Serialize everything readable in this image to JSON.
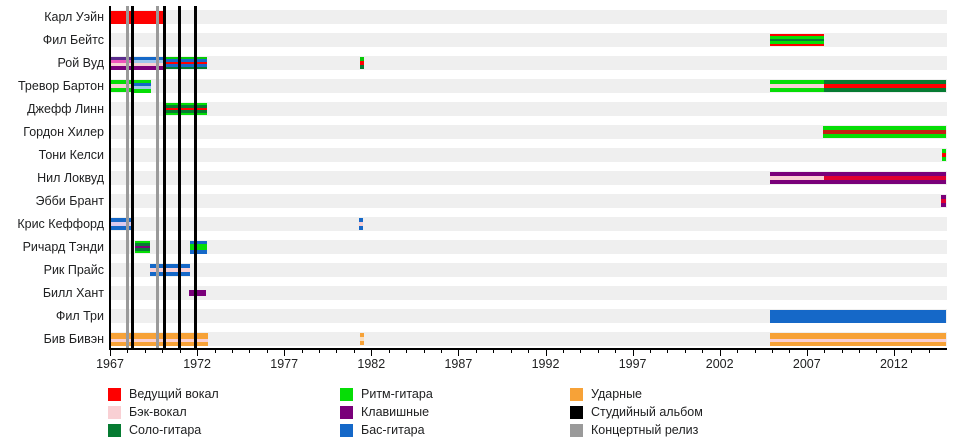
{
  "chart_data": {
    "type": "timeline",
    "title": "",
    "x_axis": {
      "start": 1967,
      "end": 2015,
      "ticks": [
        1967,
        1972,
        1977,
        1982,
        1987,
        1992,
        1997,
        2002,
        2007,
        2012
      ],
      "minor_tick_every": 1
    },
    "members": [
      {
        "name": "Карл Уэйн",
        "segments": [
          {
            "from": 1967.0,
            "to": 1970.15,
            "stripes": [
              "#FE0000"
            ]
          }
        ]
      },
      {
        "name": "Фил Бейтс",
        "segments": [
          {
            "from": 2004.9,
            "to": 2008.0,
            "stripes": [
              "#FE0000",
              "#06DD06",
              "#067B32",
              "#06DD06",
              "#FE0000"
            ]
          }
        ]
      },
      {
        "name": "Рой Вуд",
        "segments": [
          {
            "from": 1967.0,
            "to": 1968.3,
            "stripes": [
              "#5B2D8E",
              "#EE55BB",
              "#F9D0D4",
              "#7A007A"
            ]
          },
          {
            "from": 1968.3,
            "to": 1970.05,
            "stripes": [
              "#1568C8",
              "#9FC6EC",
              "#F9D0D4",
              "#7A007A"
            ]
          },
          {
            "from": 1970.05,
            "to": 1972.55,
            "stripes": [
              "#06C806",
              "#1568C8",
              "#FE0000",
              "#1568C8",
              "#067B32"
            ]
          },
          {
            "from": 1981.35,
            "to": 1981.6,
            "stripes": [
              "#06C806",
              "#FE0000",
              "#067B32"
            ]
          }
        ]
      },
      {
        "name": "Тревор Бартон",
        "segments": [
          {
            "from": 1967.0,
            "to": 1968.35,
            "stripes": [
              "#06DD06",
              "#F9D0D4",
              "#06DD06"
            ]
          },
          {
            "from": 1968.35,
            "to": 1969.35,
            "stripes": [
              "#06DD06",
              "#1568C8",
              "#9FC6EC",
              "#06DD06"
            ]
          },
          {
            "from": 2004.9,
            "to": 2008.0,
            "stripes": [
              "#06DD06",
              "#F9D0D4",
              "#06DD06"
            ]
          },
          {
            "from": 2008.0,
            "to": 2015.0,
            "stripes": [
              "#067B32",
              "#FE0000",
              "#067B32"
            ]
          }
        ]
      },
      {
        "name": "Джефф Линн",
        "segments": [
          {
            "from": 1970.2,
            "to": 1972.55,
            "stripes": [
              "#06DD06",
              "#067B32",
              "#FE0000",
              "#067B32",
              "#06DD06"
            ]
          }
        ]
      },
      {
        "name": "Гордон Хилер",
        "segments": [
          {
            "from": 2007.95,
            "to": 2015.0,
            "stripes": [
              "#06DD06",
              "#C42015",
              "#06DD06"
            ]
          }
        ]
      },
      {
        "name": "Тони Келси",
        "segments": [
          {
            "from": 2014.75,
            "to": 2015.0,
            "stripes": [
              "#06DD06",
              "#FE0000",
              "#06DD06"
            ]
          }
        ]
      },
      {
        "name": "Нил Локвуд",
        "segments": [
          {
            "from": 2004.9,
            "to": 2008.0,
            "stripes": [
              "#7A007A",
              "#F9D0D4",
              "#7A007A"
            ]
          },
          {
            "from": 2008.0,
            "to": 2015.0,
            "stripes": [
              "#7A007A",
              "#E00030",
              "#7A007A"
            ]
          }
        ]
      },
      {
        "name": "Эбби Брант",
        "segments": [
          {
            "from": 2014.7,
            "to": 2015.0,
            "stripes": [
              "#7A007A",
              "#E00030",
              "#7A007A"
            ]
          }
        ]
      },
      {
        "name": "Крис Кеффорд",
        "segments": [
          {
            "from": 1967.0,
            "to": 1968.4,
            "stripes": [
              "#1568C8",
              "#D9C9EE",
              "#1568C8"
            ]
          },
          {
            "from": 1981.3,
            "to": 1981.52,
            "stripes": [
              "#1568C8",
              "#F9D0D4",
              "#1568C8"
            ]
          }
        ]
      },
      {
        "name": "Ричард Тэнди",
        "segments": [
          {
            "from": 1968.45,
            "to": 1969.3,
            "stripes": [
              "#06DD06",
              "#067B32",
              "#7A007A",
              "#067B32",
              "#06DD06"
            ]
          },
          {
            "from": 1971.6,
            "to": 1972.55,
            "stripes": [
              "#1568C8",
              "#06DD06",
              "#06DD06",
              "#1568C8"
            ]
          }
        ]
      },
      {
        "name": "Рик Прайс",
        "segments": [
          {
            "from": 1969.3,
            "to": 1971.6,
            "stripes": [
              "#1568C8",
              "#F9D0D4",
              "#1568C8"
            ]
          }
        ]
      },
      {
        "name": "Билл Хант",
        "segments": [
          {
            "from": 1971.55,
            "to": 1972.5,
            "stripes": [
              "#7A007A"
            ],
            "height": 6
          }
        ]
      },
      {
        "name": "Фил Три",
        "segments": [
          {
            "from": 2004.9,
            "to": 2015.0,
            "stripes": [
              "#1568C8"
            ]
          }
        ]
      },
      {
        "name": "Бив Бивэн",
        "segments": [
          {
            "from": 1967.0,
            "to": 1972.6,
            "stripes": [
              "#F7A237",
              "#F7A237",
              "#F9D0D4",
              "#F7A237"
            ]
          },
          {
            "from": 1981.35,
            "to": 1981.6,
            "stripes": [
              "#F7A237",
              "#FBDFBF",
              "#F7A237"
            ]
          },
          {
            "from": 2004.9,
            "to": 2015.0,
            "stripes": [
              "#F7A237",
              "#F7A237",
              "#F9D0D4",
              "#F7A237"
            ]
          }
        ]
      }
    ],
    "releases": [
      {
        "year": 1968.02,
        "type": "concert"
      },
      {
        "year": 1968.3,
        "type": "studio"
      },
      {
        "year": 1969.75,
        "type": "concert"
      },
      {
        "year": 1970.1,
        "type": "studio"
      },
      {
        "year": 1971.0,
        "type": "studio"
      },
      {
        "year": 1971.9,
        "type": "studio"
      }
    ],
    "legend": [
      {
        "key": "lead-vocals",
        "label": "Ведущий вокал",
        "color": "#FE0000",
        "col": 0
      },
      {
        "key": "backing-vocals",
        "label": "Бэк-вокал",
        "color": "#F9D0D4",
        "col": 0
      },
      {
        "key": "lead-guitar",
        "label": "Соло-гитара",
        "color": "#067B32",
        "col": 0
      },
      {
        "key": "rhythm-guitar",
        "label": "Ритм-гитара",
        "color": "#06DD06",
        "col": 1
      },
      {
        "key": "keyboards",
        "label": "Клавишные",
        "color": "#7A007A",
        "col": 1
      },
      {
        "key": "bass-guitar",
        "label": "Бас-гитара",
        "color": "#1568C8",
        "col": 1
      },
      {
        "key": "drums",
        "label": "Ударные",
        "color": "#F7A237",
        "col": 2
      },
      {
        "key": "studio-album",
        "label": "Студийный альбом",
        "color": "#000000",
        "col": 2
      },
      {
        "key": "live-release",
        "label": "Концертный релиз",
        "color": "#9A9A9A",
        "col": 2
      }
    ]
  }
}
